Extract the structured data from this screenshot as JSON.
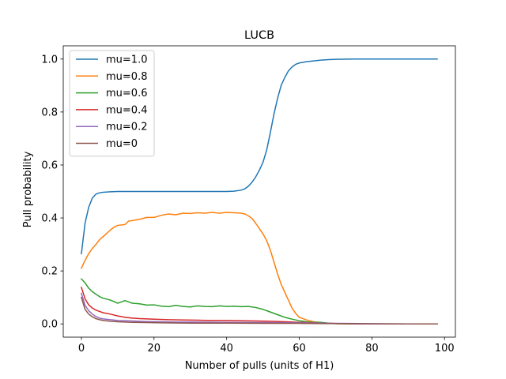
{
  "chart_data": {
    "type": "line",
    "title": "LUCB",
    "xlabel": "Number of pulls (units of H1)",
    "ylabel": "Pull probability",
    "xlim": [
      -5,
      103
    ],
    "ylim": [
      -0.05,
      1.05
    ],
    "xticks": [
      0,
      20,
      40,
      60,
      80,
      100
    ],
    "yticks": [
      0.0,
      0.2,
      0.4,
      0.6,
      0.8,
      1.0
    ],
    "xtick_labels": [
      "0",
      "20",
      "40",
      "60",
      "80",
      "100"
    ],
    "ytick_labels": [
      "0.0",
      "0.2",
      "0.4",
      "0.6",
      "0.8",
      "1.0"
    ],
    "grid": false,
    "legend_position": "top-left",
    "series": [
      {
        "name": "mu=1.0",
        "color": "#1f77b4",
        "points": [
          [
            0,
            0.265
          ],
          [
            1,
            0.38
          ],
          [
            2,
            0.44
          ],
          [
            3,
            0.475
          ],
          [
            4,
            0.49
          ],
          [
            5,
            0.495
          ],
          [
            6,
            0.497
          ],
          [
            8,
            0.499
          ],
          [
            10,
            0.5
          ],
          [
            20,
            0.5
          ],
          [
            30,
            0.5
          ],
          [
            40,
            0.5
          ],
          [
            42,
            0.501
          ],
          [
            44,
            0.505
          ],
          [
            45,
            0.51
          ],
          [
            46,
            0.52
          ],
          [
            47,
            0.535
          ],
          [
            48,
            0.555
          ],
          [
            49,
            0.58
          ],
          [
            50,
            0.61
          ],
          [
            51,
            0.655
          ],
          [
            52,
            0.72
          ],
          [
            53,
            0.79
          ],
          [
            54,
            0.85
          ],
          [
            55,
            0.9
          ],
          [
            56,
            0.93
          ],
          [
            57,
            0.955
          ],
          [
            58,
            0.97
          ],
          [
            59,
            0.98
          ],
          [
            60,
            0.985
          ],
          [
            62,
            0.99
          ],
          [
            64,
            0.993
          ],
          [
            66,
            0.996
          ],
          [
            68,
            0.998
          ],
          [
            70,
            0.999
          ],
          [
            75,
            1.0
          ],
          [
            98,
            1.0
          ]
        ]
      },
      {
        "name": "mu=0.8",
        "color": "#ff7f0e",
        "points": [
          [
            0,
            0.21
          ],
          [
            1,
            0.24
          ],
          [
            2,
            0.265
          ],
          [
            3,
            0.285
          ],
          [
            4,
            0.3
          ],
          [
            5,
            0.318
          ],
          [
            6,
            0.33
          ],
          [
            7,
            0.342
          ],
          [
            8,
            0.355
          ],
          [
            9,
            0.365
          ],
          [
            10,
            0.372
          ],
          [
            12,
            0.375
          ],
          [
            13,
            0.388
          ],
          [
            14,
            0.39
          ],
          [
            16,
            0.395
          ],
          [
            18,
            0.402
          ],
          [
            20,
            0.402
          ],
          [
            22,
            0.41
          ],
          [
            24,
            0.415
          ],
          [
            26,
            0.412
          ],
          [
            28,
            0.418
          ],
          [
            30,
            0.417
          ],
          [
            32,
            0.42
          ],
          [
            34,
            0.418
          ],
          [
            36,
            0.421
          ],
          [
            38,
            0.418
          ],
          [
            40,
            0.421
          ],
          [
            42,
            0.42
          ],
          [
            44,
            0.418
          ],
          [
            45,
            0.415
          ],
          [
            46,
            0.408
          ],
          [
            47,
            0.398
          ],
          [
            48,
            0.38
          ],
          [
            49,
            0.36
          ],
          [
            50,
            0.34
          ],
          [
            51,
            0.315
          ],
          [
            52,
            0.28
          ],
          [
            53,
            0.235
          ],
          [
            54,
            0.19
          ],
          [
            55,
            0.15
          ],
          [
            56,
            0.12
          ],
          [
            57,
            0.09
          ],
          [
            58,
            0.06
          ],
          [
            59,
            0.04
          ],
          [
            60,
            0.025
          ],
          [
            62,
            0.015
          ],
          [
            64,
            0.008
          ],
          [
            66,
            0.005
          ],
          [
            68,
            0.002
          ],
          [
            70,
            0.001
          ],
          [
            75,
            0.0
          ],
          [
            98,
            0.0
          ]
        ]
      },
      {
        "name": "mu=0.6",
        "color": "#2ca02c",
        "points": [
          [
            0,
            0.17
          ],
          [
            1,
            0.155
          ],
          [
            2,
            0.135
          ],
          [
            3,
            0.122
          ],
          [
            4,
            0.112
          ],
          [
            5,
            0.103
          ],
          [
            6,
            0.097
          ],
          [
            8,
            0.09
          ],
          [
            10,
            0.078
          ],
          [
            12,
            0.088
          ],
          [
            14,
            0.078
          ],
          [
            16,
            0.076
          ],
          [
            18,
            0.071
          ],
          [
            20,
            0.072
          ],
          [
            22,
            0.067
          ],
          [
            24,
            0.065
          ],
          [
            26,
            0.07
          ],
          [
            28,
            0.066
          ],
          [
            30,
            0.064
          ],
          [
            32,
            0.068
          ],
          [
            34,
            0.066
          ],
          [
            36,
            0.065
          ],
          [
            38,
            0.068
          ],
          [
            40,
            0.066
          ],
          [
            42,
            0.067
          ],
          [
            44,
            0.065
          ],
          [
            46,
            0.066
          ],
          [
            48,
            0.062
          ],
          [
            50,
            0.055
          ],
          [
            52,
            0.045
          ],
          [
            54,
            0.035
          ],
          [
            56,
            0.025
          ],
          [
            58,
            0.018
          ],
          [
            60,
            0.012
          ],
          [
            62,
            0.008
          ],
          [
            64,
            0.006
          ],
          [
            66,
            0.006
          ],
          [
            68,
            0.003
          ],
          [
            70,
            0.001
          ],
          [
            75,
            0.0
          ],
          [
            98,
            0.0
          ]
        ]
      },
      {
        "name": "mu=0.4",
        "color": "#d62728",
        "points": [
          [
            0,
            0.138
          ],
          [
            1,
            0.095
          ],
          [
            2,
            0.072
          ],
          [
            3,
            0.06
          ],
          [
            4,
            0.052
          ],
          [
            5,
            0.047
          ],
          [
            6,
            0.042
          ],
          [
            8,
            0.037
          ],
          [
            10,
            0.03
          ],
          [
            12,
            0.025
          ],
          [
            14,
            0.022
          ],
          [
            16,
            0.02
          ],
          [
            18,
            0.019
          ],
          [
            20,
            0.018
          ],
          [
            24,
            0.016
          ],
          [
            28,
            0.015
          ],
          [
            32,
            0.014
          ],
          [
            36,
            0.013
          ],
          [
            40,
            0.013
          ],
          [
            44,
            0.012
          ],
          [
            48,
            0.011
          ],
          [
            52,
            0.01
          ],
          [
            56,
            0.008
          ],
          [
            60,
            0.006
          ],
          [
            64,
            0.004
          ],
          [
            68,
            0.002
          ],
          [
            72,
            0.001
          ],
          [
            76,
            0.0
          ],
          [
            98,
            0.0
          ]
        ]
      },
      {
        "name": "mu=0.2",
        "color": "#9467bd",
        "points": [
          [
            0,
            0.115
          ],
          [
            1,
            0.07
          ],
          [
            2,
            0.05
          ],
          [
            3,
            0.037
          ],
          [
            4,
            0.028
          ],
          [
            5,
            0.022
          ],
          [
            6,
            0.019
          ],
          [
            8,
            0.016
          ],
          [
            10,
            0.013
          ],
          [
            14,
            0.011
          ],
          [
            18,
            0.009
          ],
          [
            22,
            0.008
          ],
          [
            26,
            0.007
          ],
          [
            30,
            0.007
          ],
          [
            40,
            0.006
          ],
          [
            50,
            0.005
          ],
          [
            60,
            0.004
          ],
          [
            70,
            0.002
          ],
          [
            80,
            0.001
          ],
          [
            90,
            0.0
          ],
          [
            98,
            0.0
          ]
        ]
      },
      {
        "name": "mu=0",
        "color": "#8c564b",
        "points": [
          [
            0,
            0.1
          ],
          [
            1,
            0.055
          ],
          [
            2,
            0.037
          ],
          [
            3,
            0.027
          ],
          [
            4,
            0.02
          ],
          [
            5,
            0.016
          ],
          [
            6,
            0.013
          ],
          [
            8,
            0.01
          ],
          [
            10,
            0.008
          ],
          [
            14,
            0.006
          ],
          [
            18,
            0.005
          ],
          [
            22,
            0.004
          ],
          [
            30,
            0.003
          ],
          [
            40,
            0.003
          ],
          [
            50,
            0.002
          ],
          [
            60,
            0.002
          ],
          [
            70,
            0.001
          ],
          [
            80,
            0.0
          ],
          [
            98,
            0.0
          ]
        ]
      }
    ]
  }
}
